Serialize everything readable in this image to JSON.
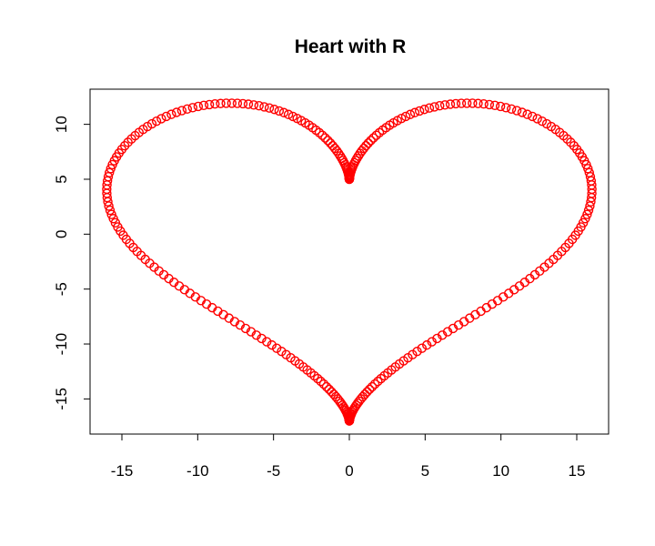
{
  "chart_data": {
    "type": "scatter",
    "title": "Heart with R",
    "xlabel": "",
    "ylabel": "",
    "xlim": [
      -17.1,
      17.1
    ],
    "ylim": [
      -18.2,
      13.2
    ],
    "x_ticks": [
      -15,
      -10,
      -5,
      0,
      5,
      10,
      15
    ],
    "x_tick_labels": [
      "-15",
      "-10",
      "-5",
      "0",
      "5",
      "10",
      "15"
    ],
    "y_ticks": [
      -15,
      -10,
      -5,
      0,
      5,
      10
    ],
    "y_tick_labels": [
      "-15",
      "-10",
      "-5",
      "0",
      "5",
      "10"
    ],
    "grid": false,
    "legend": "none",
    "series": [
      {
        "curve": "heart",
        "x_formula": "16*sin(t)^3",
        "y_formula": "13*cos(t) - 5*cos(2t) - 2*cos(3t) - cos(4t)",
        "t_range": [
          0,
          6.2832
        ],
        "point_count": 314,
        "marker": "open-circle",
        "color": "#ff0000"
      }
    ],
    "frame_color": "#000000"
  }
}
